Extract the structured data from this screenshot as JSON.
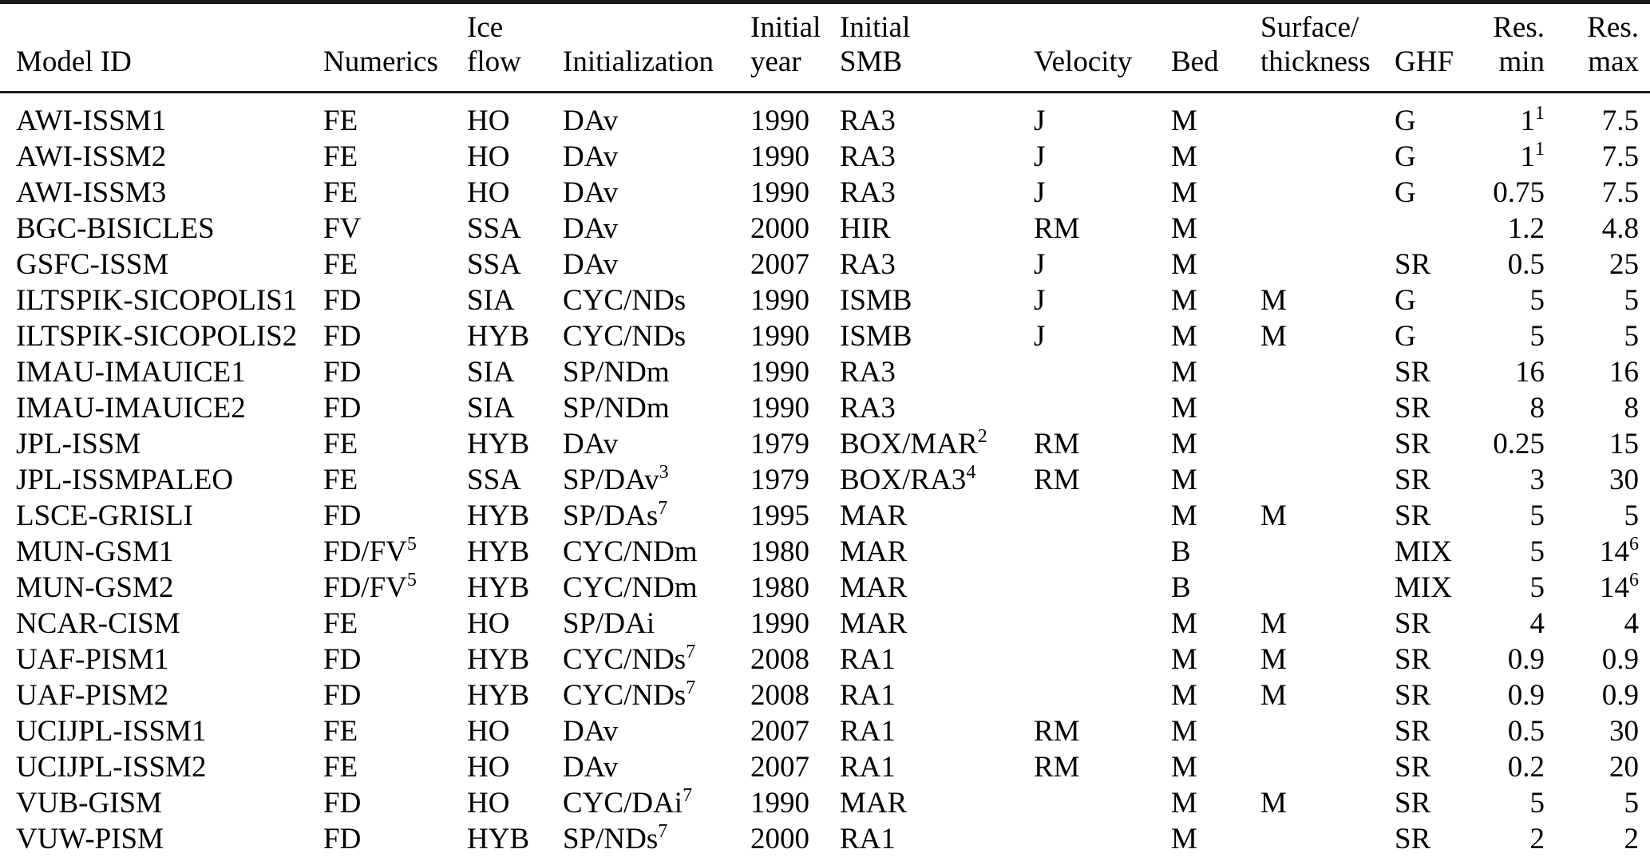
{
  "table": {
    "columns": [
      {
        "key": "model-id",
        "lines": [
          "Model ID"
        ],
        "align": "left"
      },
      {
        "key": "numerics",
        "lines": [
          "Numerics"
        ],
        "align": "left"
      },
      {
        "key": "ice-flow",
        "lines": [
          "Ice",
          "flow"
        ],
        "align": "left"
      },
      {
        "key": "initialization",
        "lines": [
          "Initialization"
        ],
        "align": "left"
      },
      {
        "key": "initial-year",
        "lines": [
          "Initial",
          "year"
        ],
        "align": "left"
      },
      {
        "key": "initial-smb",
        "lines": [
          "Initial",
          "SMB"
        ],
        "align": "left"
      },
      {
        "key": "velocity",
        "lines": [
          "Velocity"
        ],
        "align": "left"
      },
      {
        "key": "bed",
        "lines": [
          "Bed"
        ],
        "align": "left"
      },
      {
        "key": "surface-thickness",
        "lines": [
          "Surface/",
          "thickness"
        ],
        "align": "left"
      },
      {
        "key": "ghf",
        "lines": [
          "GHF"
        ],
        "align": "left"
      },
      {
        "key": "res-min",
        "lines": [
          "Res.",
          "min"
        ],
        "align": "right"
      },
      {
        "key": "res-max",
        "lines": [
          "Res.",
          "max"
        ],
        "align": "right"
      }
    ],
    "rows": [
      [
        "AWI-ISSM1",
        "FE",
        "HO",
        "DAv",
        "1990",
        "RA3",
        "J",
        "M",
        "",
        "G",
        "1^1",
        "7.5"
      ],
      [
        "AWI-ISSM2",
        "FE",
        "HO",
        "DAv",
        "1990",
        "RA3",
        "J",
        "M",
        "",
        "G",
        "1^1",
        "7.5"
      ],
      [
        "AWI-ISSM3",
        "FE",
        "HO",
        "DAv",
        "1990",
        "RA3",
        "J",
        "M",
        "",
        "G",
        "0.75",
        "7.5"
      ],
      [
        "BGC-BISICLES",
        "FV",
        "SSA",
        "DAv",
        "2000",
        "HIR",
        "RM",
        "M",
        "",
        "",
        "1.2",
        "4.8"
      ],
      [
        "GSFC-ISSM",
        "FE",
        "SSA",
        "DAv",
        "2007",
        "RA3",
        "J",
        "M",
        "",
        "SR",
        "0.5",
        "25"
      ],
      [
        "ILTSPIK-SICOPOLIS1",
        "FD",
        "SIA",
        "CYC/NDs",
        "1990",
        "ISMB",
        "J",
        "M",
        "M",
        "G",
        "5",
        "5"
      ],
      [
        "ILTSPIK-SICOPOLIS2",
        "FD",
        "HYB",
        "CYC/NDs",
        "1990",
        "ISMB",
        "J",
        "M",
        "M",
        "G",
        "5",
        "5"
      ],
      [
        "IMAU-IMAUICE1",
        "FD",
        "SIA",
        "SP/NDm",
        "1990",
        "RA3",
        "",
        "M",
        "",
        "SR",
        "16",
        "16"
      ],
      [
        "IMAU-IMAUICE2",
        "FD",
        "SIA",
        "SP/NDm",
        "1990",
        "RA3",
        "",
        "M",
        "",
        "SR",
        "8",
        "8"
      ],
      [
        "JPL-ISSM",
        "FE",
        "HYB",
        "DAv",
        "1979",
        "BOX/MAR^2",
        "RM",
        "M",
        "",
        "SR",
        "0.25",
        "15"
      ],
      [
        "JPL-ISSMPALEO",
        "FE",
        "SSA",
        "SP/DAv^3",
        "1979",
        "BOX/RA3^4",
        "RM",
        "M",
        "",
        "SR",
        "3",
        "30"
      ],
      [
        "LSCE-GRISLI",
        "FD",
        "HYB",
        "SP/DAs^7",
        "1995",
        "MAR",
        "",
        "M",
        "M",
        "SR",
        "5",
        "5"
      ],
      [
        "MUN-GSM1",
        "FD/FV^5",
        "HYB",
        "CYC/NDm",
        "1980",
        "MAR",
        "",
        "B",
        "",
        "MIX",
        "5",
        "14^6"
      ],
      [
        "MUN-GSM2",
        "FD/FV^5",
        "HYB",
        "CYC/NDm",
        "1980",
        "MAR",
        "",
        "B",
        "",
        "MIX",
        "5",
        "14^6"
      ],
      [
        "NCAR-CISM",
        "FE",
        "HO",
        "SP/DAi",
        "1990",
        "MAR",
        "",
        "M",
        "M",
        "SR",
        "4",
        "4"
      ],
      [
        "UAF-PISM1",
        "FD",
        "HYB",
        "CYC/NDs^7",
        "2008",
        "RA1",
        "",
        "M",
        "M",
        "SR",
        "0.9",
        "0.9"
      ],
      [
        "UAF-PISM2",
        "FD",
        "HYB",
        "CYC/NDs^7",
        "2008",
        "RA1",
        "",
        "M",
        "M",
        "SR",
        "0.9",
        "0.9"
      ],
      [
        "UCIJPL-ISSM1",
        "FE",
        "HO",
        "DAv",
        "2007",
        "RA1",
        "RM",
        "M",
        "",
        "SR",
        "0.5",
        "30"
      ],
      [
        "UCIJPL-ISSM2",
        "FE",
        "HO",
        "DAv",
        "2007",
        "RA1",
        "RM",
        "M",
        "",
        "SR",
        "0.2",
        "20"
      ],
      [
        "VUB-GISM",
        "FD",
        "HO",
        "CYC/DAi^7",
        "1990",
        "MAR",
        "",
        "M",
        "M",
        "SR",
        "5",
        "5"
      ],
      [
        "VUW-PISM",
        "FD",
        "HYB",
        "SP/NDs^7",
        "2000",
        "RA1",
        "",
        "M",
        "",
        "SR",
        "2",
        "2"
      ]
    ],
    "text_color": "#000000",
    "rule_color": "#1b1b1b"
  }
}
